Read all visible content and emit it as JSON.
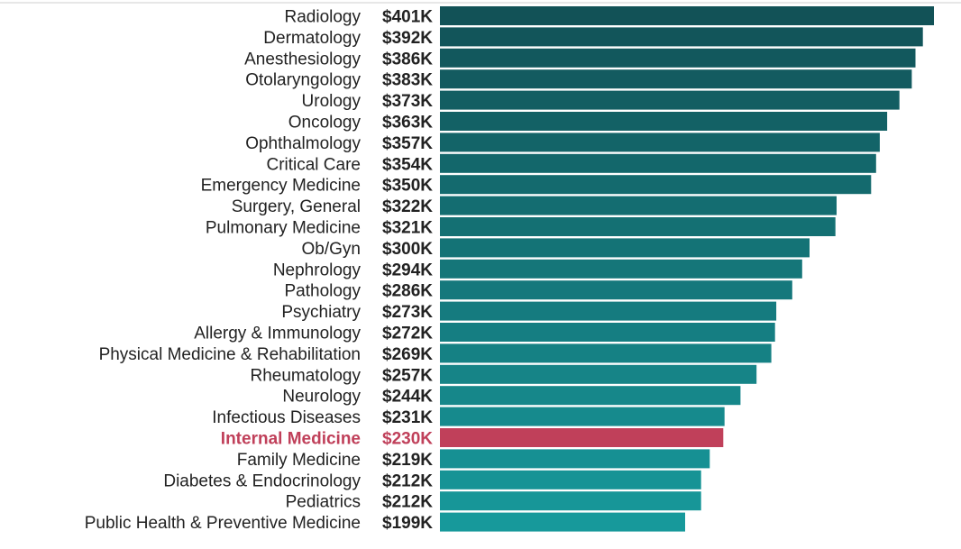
{
  "chart_data": {
    "type": "bar",
    "orientation": "horizontal",
    "categories": [
      "Radiology",
      "Dermatology",
      "Anesthesiology",
      "Otolaryngology",
      "Urology",
      "Oncology",
      "Ophthalmology",
      "Critical Care",
      "Emergency Medicine",
      "Surgery, General",
      "Pulmonary Medicine",
      "Ob/Gyn",
      "Nephrology",
      "Pathology",
      "Psychiatry",
      "Allergy & Immunology",
      "Physical Medicine & Rehabilitation",
      "Rheumatology",
      "Neurology",
      "Infectious Diseases",
      "Internal Medicine",
      "Family Medicine",
      "Diabetes & Endocrinology",
      "Pediatrics",
      "Public Health & Preventive Medicine"
    ],
    "values": [
      401,
      392,
      386,
      383,
      373,
      363,
      357,
      354,
      350,
      322,
      321,
      300,
      294,
      286,
      273,
      272,
      269,
      257,
      244,
      231,
      230,
      219,
      212,
      212,
      199
    ],
    "value_labels": [
      "$401K",
      "$392K",
      "$386K",
      "$383K",
      "$373K",
      "$363K",
      "$357K",
      "$354K",
      "$350K",
      "$322K",
      "$321K",
      "$300K",
      "$294K",
      "$286K",
      "$273K",
      "$272K",
      "$269K",
      "$257K",
      "$244K",
      "$231K",
      "$230K",
      "$219K",
      "$212K",
      "$212K",
      "$199K"
    ],
    "highlight_category": "Internal Medicine",
    "xlim": [
      0,
      410
    ],
    "grid": false,
    "colors": {
      "bar_dark": "#125257",
      "bar_light": "#17999b",
      "highlight": "#c0405a",
      "text": "#222222"
    }
  }
}
